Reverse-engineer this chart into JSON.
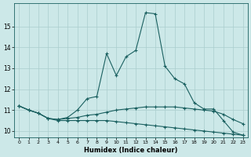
{
  "xlabel": "Humidex (Indice chaleur)",
  "bg_color": "#cce8e8",
  "line_color": "#1a6060",
  "grid_color": "#aacece",
  "xlim": [
    -0.5,
    23.5
  ],
  "ylim": [
    9.7,
    16.1
  ],
  "yticks": [
    10,
    11,
    12,
    13,
    14,
    15
  ],
  "xticks": [
    0,
    1,
    2,
    3,
    4,
    5,
    6,
    7,
    8,
    9,
    10,
    11,
    12,
    13,
    14,
    15,
    16,
    17,
    18,
    19,
    20,
    21,
    22,
    23
  ],
  "lines": [
    {
      "x": [
        0,
        1,
        2,
        3,
        4,
        5,
        6,
        7,
        8,
        9,
        10,
        11,
        12,
        13,
        14,
        15,
        16,
        17,
        18,
        19,
        20,
        21,
        22,
        23
      ],
      "y": [
        11.2,
        11.0,
        10.85,
        10.6,
        10.55,
        10.65,
        11.0,
        11.55,
        11.65,
        13.7,
        12.65,
        13.55,
        13.85,
        15.65,
        15.6,
        13.1,
        12.5,
        12.25,
        11.35,
        11.05,
        11.05,
        10.5,
        9.95,
        9.8
      ]
    },
    {
      "x": [
        0,
        1,
        2,
        3,
        4,
        5,
        6,
        7,
        8,
        9,
        10,
        11,
        12,
        13,
        14,
        15,
        16,
        17,
        18,
        19,
        20,
        21,
        22,
        23
      ],
      "y": [
        11.2,
        11.0,
        10.85,
        10.6,
        10.55,
        10.6,
        10.65,
        10.75,
        10.8,
        10.9,
        11.0,
        11.05,
        11.1,
        11.15,
        11.15,
        11.15,
        11.15,
        11.1,
        11.05,
        11.0,
        10.95,
        10.8,
        10.55,
        10.35
      ]
    },
    {
      "x": [
        0,
        1,
        2,
        3,
        4,
        5,
        6,
        7,
        8,
        9,
        10,
        11,
        12,
        13,
        14,
        15,
        16,
        17,
        18,
        19,
        20,
        21,
        22,
        23
      ],
      "y": [
        11.2,
        11.0,
        10.85,
        10.6,
        10.5,
        10.5,
        10.5,
        10.5,
        10.5,
        10.5,
        10.45,
        10.4,
        10.35,
        10.3,
        10.25,
        10.2,
        10.15,
        10.1,
        10.05,
        10.0,
        9.95,
        9.9,
        9.85,
        9.8
      ]
    }
  ]
}
